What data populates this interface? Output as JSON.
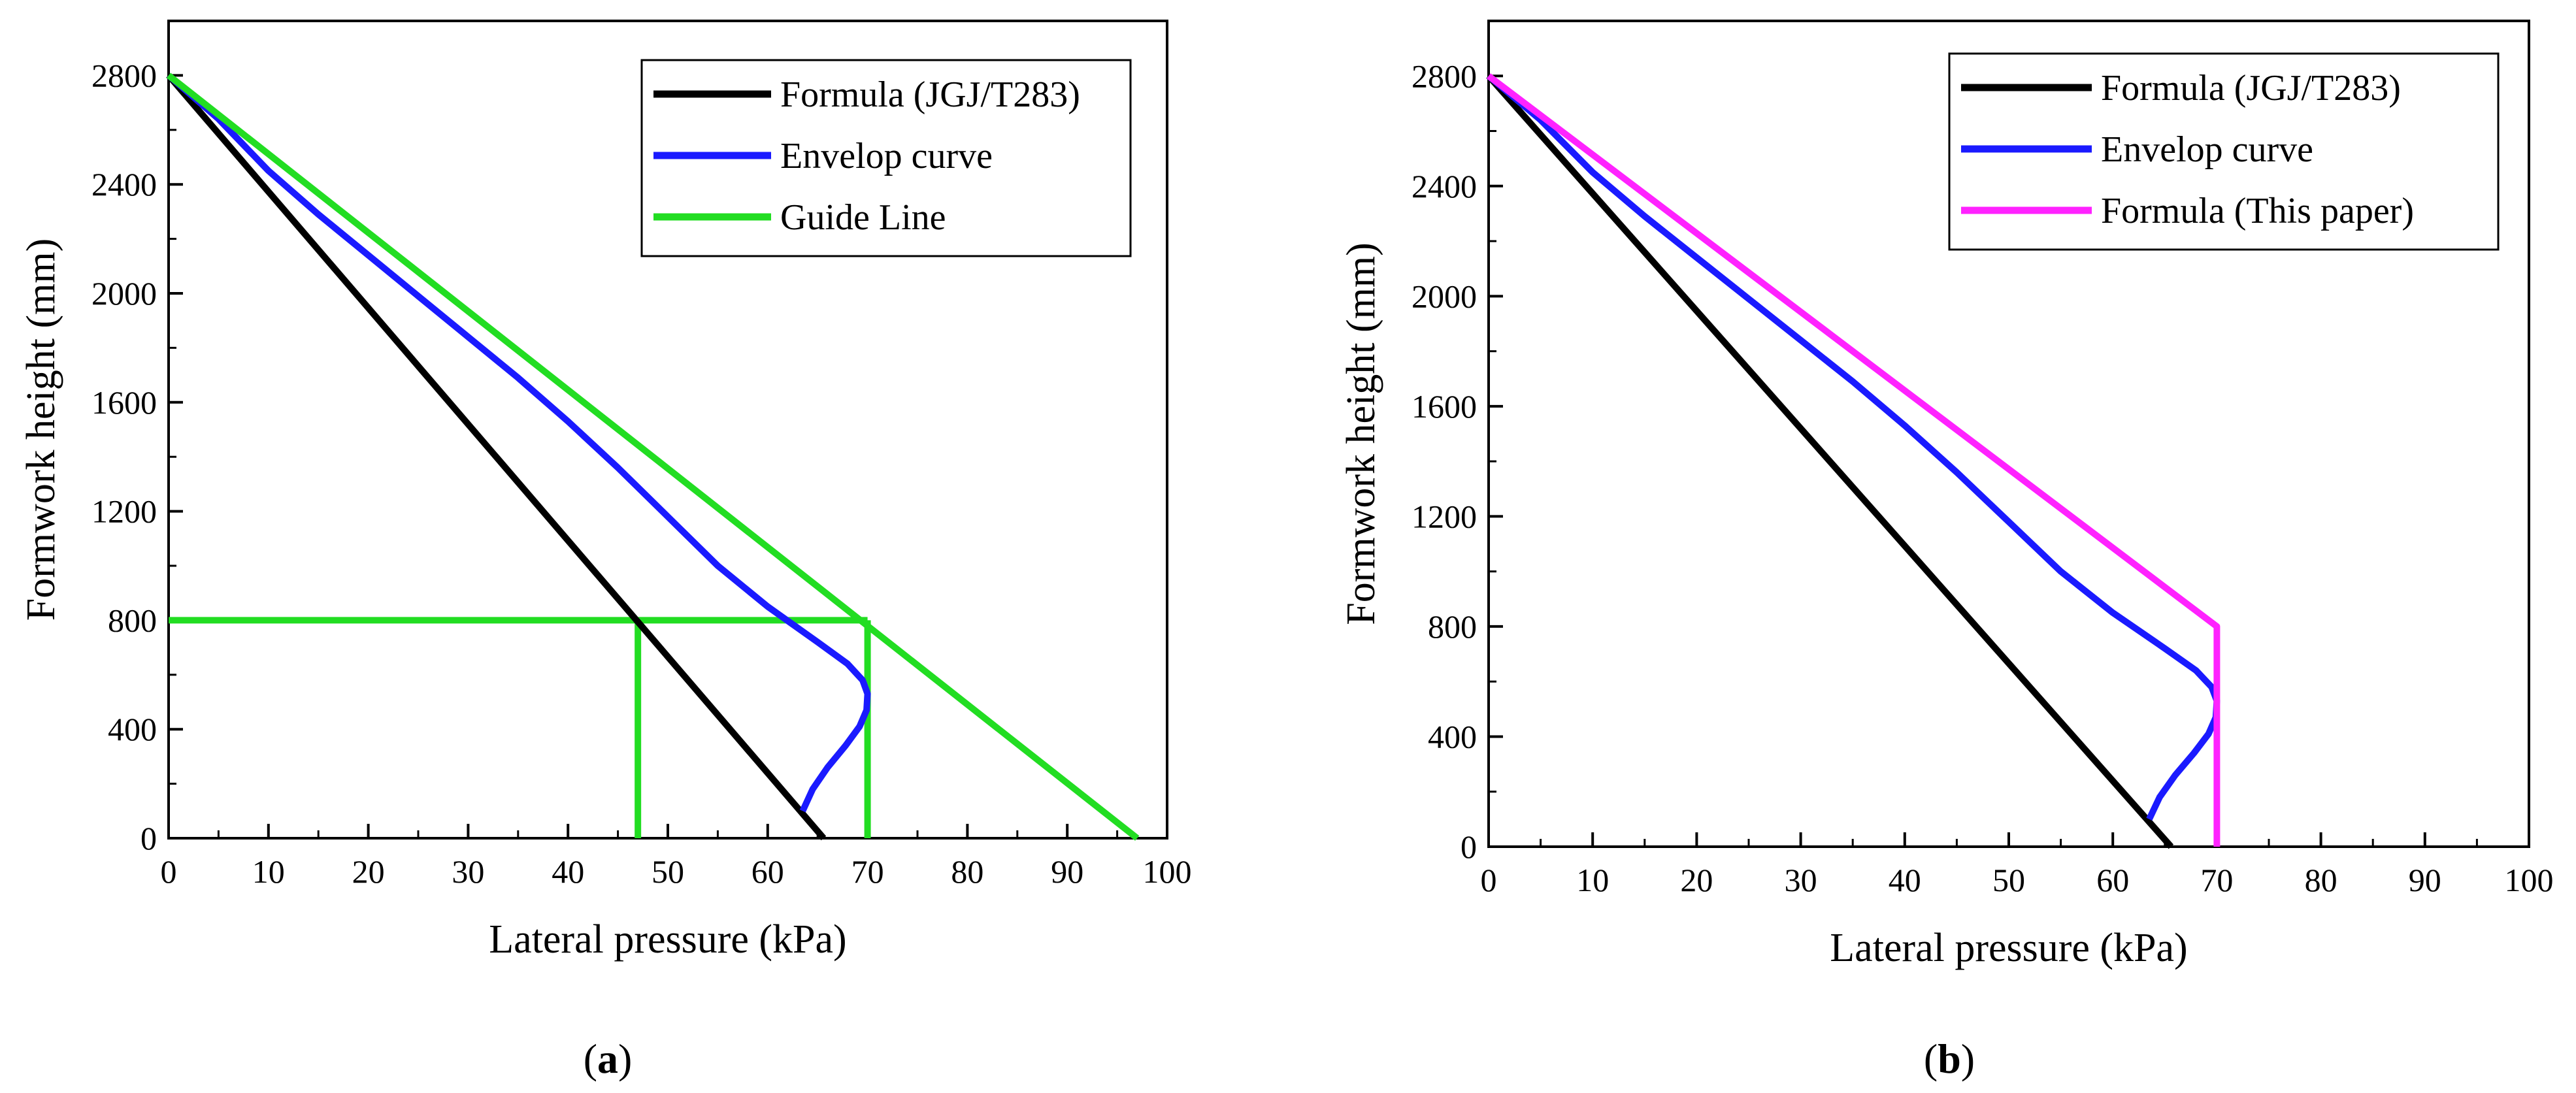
{
  "figure": {
    "panel_a_caption_letter": "a",
    "panel_b_caption_letter": "b"
  },
  "colors": {
    "formula_jgj": "#000000",
    "envelope": "#1a1aff",
    "guide_line": "#22dd22",
    "formula_this_paper": "#ff22ff",
    "axis": "#000000"
  },
  "chart_data": [
    {
      "id": "a",
      "type": "line",
      "caption": "(a)",
      "xlabel": "Lateral pressure (kPa)",
      "ylabel": "Formwork height (mm)",
      "xlim": [
        0,
        100
      ],
      "ylim": [
        0,
        3000
      ],
      "xticks": [
        0,
        10,
        20,
        30,
        40,
        50,
        60,
        70,
        80,
        90,
        100
      ],
      "yticks": [
        0,
        400,
        800,
        1200,
        1600,
        2000,
        2400,
        2800
      ],
      "legend_position": "top-right",
      "series": [
        {
          "name": "Formula (JGJ/T283)",
          "color": "#000000",
          "x": [
            0,
            65.6
          ],
          "y": [
            2800,
            0
          ]
        },
        {
          "name": "Envelop curve",
          "color": "#1a1aff",
          "x": [
            0,
            5,
            10,
            15,
            20,
            25,
            30,
            35,
            40,
            45,
            50,
            55,
            60,
            65,
            68,
            69.5,
            70,
            69.9,
            69.2,
            67.8,
            66,
            64.5,
            63.5
          ],
          "y": [
            2800,
            2640,
            2450,
            2290,
            2140,
            1990,
            1840,
            1690,
            1530,
            1360,
            1180,
            1000,
            850,
            720,
            640,
            580,
            530,
            470,
            410,
            340,
            260,
            180,
            100
          ]
        },
        {
          "name": "Guide Line",
          "color": "#22dd22",
          "x": [
            0,
            97
          ],
          "y": [
            2800,
            0
          ]
        }
      ],
      "guide_segments": [
        {
          "x": [
            0,
            70
          ],
          "y": [
            800,
            800
          ]
        },
        {
          "x": [
            47,
            47
          ],
          "y": [
            0,
            800
          ]
        },
        {
          "x": [
            70,
            70
          ],
          "y": [
            0,
            800
          ]
        }
      ]
    },
    {
      "id": "b",
      "type": "line",
      "caption": "(b)",
      "xlabel": "Lateral pressure (kPa)",
      "ylabel": "Formwork height (mm)",
      "xlim": [
        0,
        100
      ],
      "ylim": [
        0,
        3000
      ],
      "xticks": [
        0,
        10,
        20,
        30,
        40,
        50,
        60,
        70,
        80,
        90,
        100
      ],
      "yticks": [
        0,
        400,
        800,
        1200,
        1600,
        2000,
        2400,
        2800
      ],
      "legend_position": "top-right",
      "series": [
        {
          "name": "Formula (JGJ/T283)",
          "color": "#000000",
          "x": [
            0,
            65.6
          ],
          "y": [
            2800,
            0
          ]
        },
        {
          "name": "Envelop curve",
          "color": "#1a1aff",
          "x": [
            0,
            5,
            10,
            15,
            20,
            25,
            30,
            35,
            40,
            45,
            50,
            55,
            60,
            65,
            68,
            69.5,
            70,
            69.9,
            69.2,
            67.8,
            66,
            64.5,
            63.5
          ],
          "y": [
            2800,
            2640,
            2450,
            2290,
            2140,
            1990,
            1840,
            1690,
            1530,
            1360,
            1180,
            1000,
            850,
            720,
            640,
            580,
            530,
            470,
            410,
            340,
            260,
            180,
            100
          ]
        },
        {
          "name": "Formula (This paper)",
          "color": "#ff22ff",
          "x": [
            0,
            70,
            70
          ],
          "y": [
            2800,
            800,
            0
          ]
        }
      ],
      "guide_segments": []
    }
  ]
}
